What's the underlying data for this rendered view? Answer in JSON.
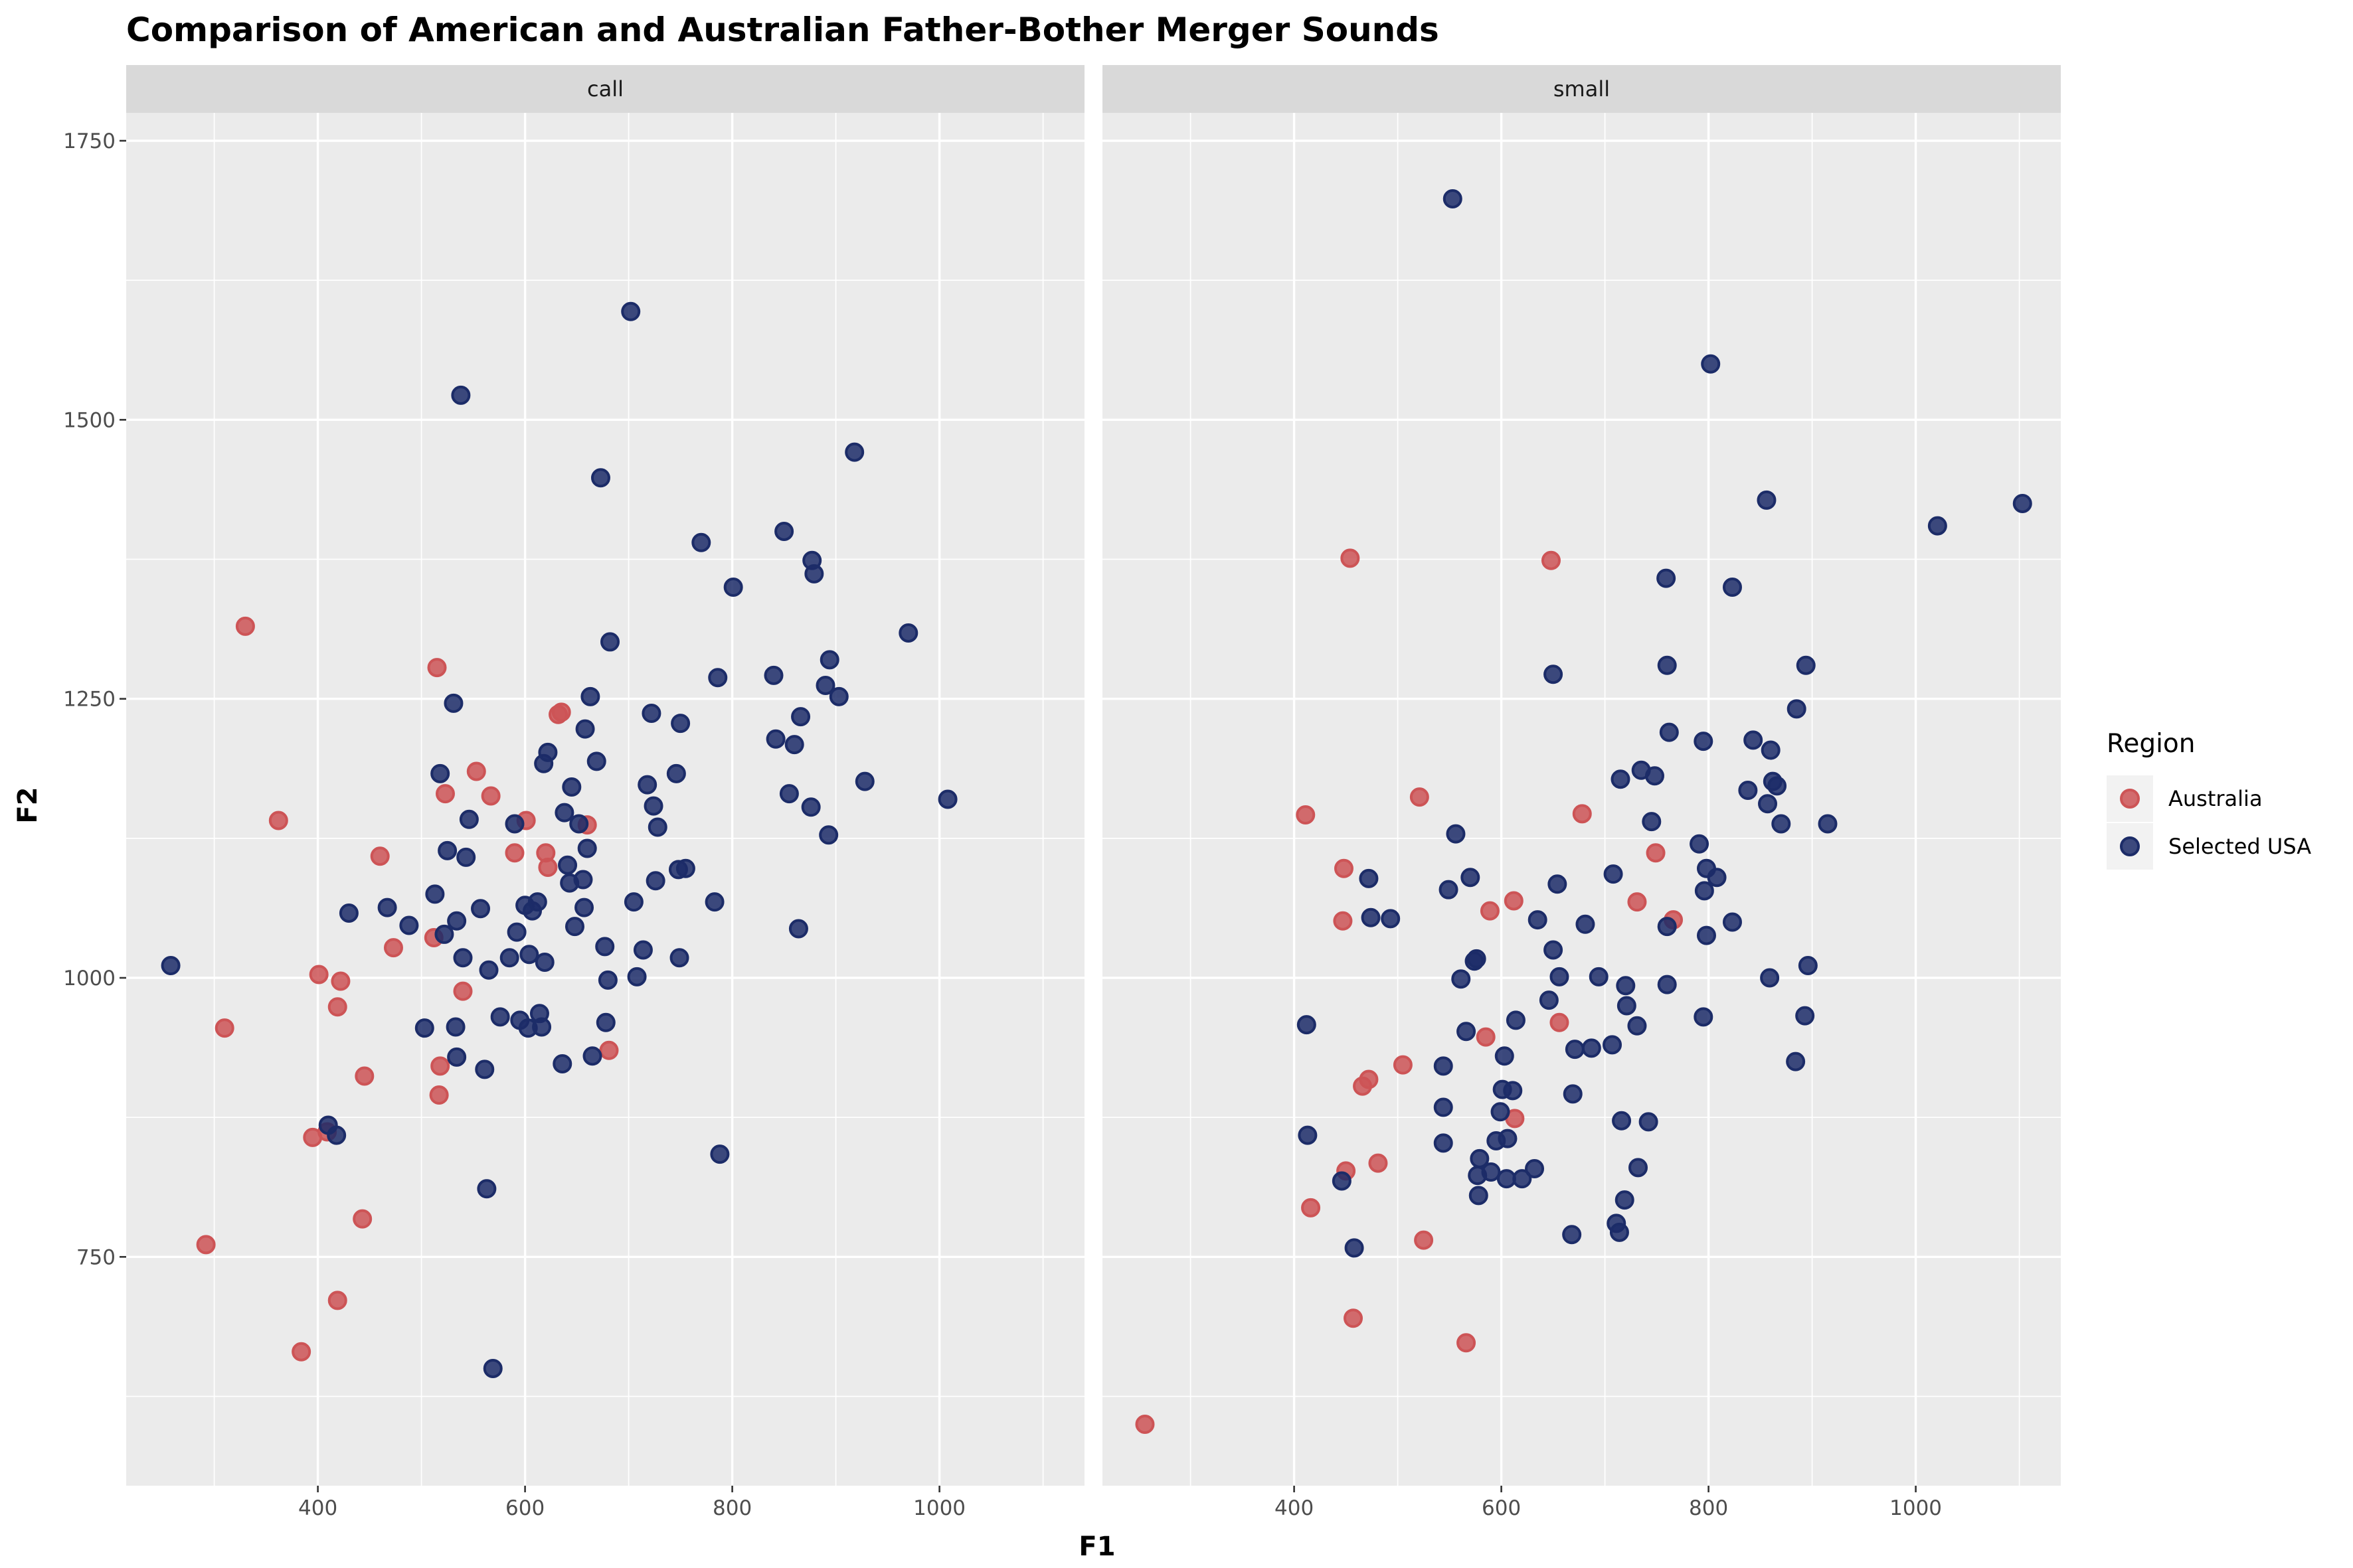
{
  "chart_data": {
    "type": "scatter",
    "title": "Comparison of American and Australian Father-Bother Merger Sounds",
    "xlabel": "F1",
    "ylabel": "F2",
    "xlim": [
      215,
      1140
    ],
    "ylim": [
      545,
      1775
    ],
    "x_major_ticks": [
      400,
      600,
      800,
      1000
    ],
    "x_minor_ticks": [
      300,
      500,
      700,
      900,
      1100
    ],
    "y_major_ticks": [
      750,
      1000,
      1250,
      1500,
      1750
    ],
    "y_minor_ticks": [
      625,
      875,
      1125,
      1375,
      1625
    ],
    "grid": true,
    "legend": {
      "title": "Region",
      "position": "right",
      "entries": [
        {
          "label": "Australia",
          "color": "#cd5456"
        },
        {
          "label": "Selected USA",
          "color": "#1c2c68"
        }
      ]
    },
    "panels": [
      {
        "label": "call",
        "series": [
          {
            "name": "Australia",
            "color": "#cd5456",
            "points": [
              [
                330,
                1315
              ],
              [
                362,
                1141
              ],
              [
                310,
                955
              ],
              [
                292,
                761
              ],
              [
                384,
                665
              ],
              [
                395,
                857
              ],
              [
                401,
                1003
              ],
              [
                409,
                862
              ],
              [
                419,
                974
              ],
              [
                422,
                997
              ],
              [
                419,
                711
              ],
              [
                443,
                784
              ],
              [
                445,
                912
              ],
              [
                460,
                1109
              ],
              [
                473,
                1027
              ],
              [
                512,
                1036
              ],
              [
                515,
                1278
              ],
              [
                517,
                895
              ],
              [
                518,
                921
              ],
              [
                523,
                1165
              ],
              [
                540,
                988
              ],
              [
                553,
                1185
              ],
              [
                567,
                1163
              ],
              [
                590,
                1112
              ],
              [
                601,
                1141
              ],
              [
                620,
                1112
              ],
              [
                622,
                1099
              ],
              [
                632,
                1236
              ],
              [
                635,
                1238
              ],
              [
                660,
                1137
              ],
              [
                681,
                935
              ]
            ]
          },
          {
            "name": "Selected USA",
            "color": "#1c2c68",
            "points": [
              [
                258,
                1011
              ],
              [
                410,
                868
              ],
              [
                418,
                859
              ],
              [
                430,
                1058
              ],
              [
                467,
                1063
              ],
              [
                488,
                1047
              ],
              [
                503,
                955
              ],
              [
                513,
                1075
              ],
              [
                518,
                1183
              ],
              [
                522,
                1039
              ],
              [
                525,
                1114
              ],
              [
                531,
                1246
              ],
              [
                533,
                956
              ],
              [
                534,
                929
              ],
              [
                534,
                1051
              ],
              [
                538,
                1522
              ],
              [
                540,
                1018
              ],
              [
                543,
                1108
              ],
              [
                546,
                1142
              ],
              [
                557,
                1062
              ],
              [
                561,
                918
              ],
              [
                563,
                811
              ],
              [
                565,
                1007
              ],
              [
                569,
                650
              ],
              [
                576,
                965
              ],
              [
                585,
                1018
              ],
              [
                590,
                1138
              ],
              [
                592,
                1041
              ],
              [
                595,
                962
              ],
              [
                600,
                1065
              ],
              [
                603,
                955
              ],
              [
                604,
                1021
              ],
              [
                607,
                1060
              ],
              [
                612,
                1068
              ],
              [
                614,
                968
              ],
              [
                616,
                956
              ],
              [
                618,
                1192
              ],
              [
                619,
                1014
              ],
              [
                622,
                1202
              ],
              [
                636,
                923
              ],
              [
                638,
                1148
              ],
              [
                641,
                1101
              ],
              [
                643,
                1085
              ],
              [
                645,
                1171
              ],
              [
                648,
                1046
              ],
              [
                652,
                1138
              ],
              [
                656,
                1088
              ],
              [
                657,
                1063
              ],
              [
                658,
                1223
              ],
              [
                660,
                1116
              ],
              [
                663,
                1252
              ],
              [
                665,
                930
              ],
              [
                669,
                1194
              ],
              [
                673,
                1448
              ],
              [
                677,
                1028
              ],
              [
                678,
                960
              ],
              [
                680,
                998
              ],
              [
                682,
                1301
              ],
              [
                702,
                1597
              ],
              [
                705,
                1068
              ],
              [
                708,
                1001
              ],
              [
                714,
                1025
              ],
              [
                718,
                1173
              ],
              [
                722,
                1237
              ],
              [
                724,
                1154
              ],
              [
                726,
                1087
              ],
              [
                728,
                1135
              ],
              [
                746,
                1183
              ],
              [
                748,
                1097
              ],
              [
                749,
                1018
              ],
              [
                750,
                1228
              ],
              [
                755,
                1098
              ],
              [
                770,
                1390
              ],
              [
                783,
                1068
              ],
              [
                786,
                1269
              ],
              [
                788,
                842
              ],
              [
                801,
                1350
              ],
              [
                840,
                1271
              ],
              [
                842,
                1214
              ],
              [
                850,
                1400
              ],
              [
                855,
                1165
              ],
              [
                860,
                1209
              ],
              [
                864,
                1044
              ],
              [
                866,
                1234
              ],
              [
                876,
                1153
              ],
              [
                877,
                1374
              ],
              [
                879,
                1362
              ],
              [
                890,
                1262
              ],
              [
                893,
                1128
              ],
              [
                894,
                1285
              ],
              [
                903,
                1252
              ],
              [
                918,
                1471
              ],
              [
                928,
                1176
              ],
              [
                970,
                1309
              ],
              [
                1008,
                1160
              ]
            ]
          }
        ]
      },
      {
        "label": "small",
        "series": [
          {
            "name": "Australia",
            "color": "#cd5456",
            "points": [
              [
                256,
                600
              ],
              [
                411,
                1146
              ],
              [
                416,
                794
              ],
              [
                447,
                1051
              ],
              [
                448,
                1098
              ],
              [
                450,
                827
              ],
              [
                454,
                1376
              ],
              [
                457,
                695
              ],
              [
                466,
                903
              ],
              [
                472,
                909
              ],
              [
                481,
                834
              ],
              [
                505,
                922
              ],
              [
                521,
                1162
              ],
              [
                525,
                765
              ],
              [
                566,
                673
              ],
              [
                585,
                947
              ],
              [
                589,
                1060
              ],
              [
                612,
                1069
              ],
              [
                613,
                874
              ],
              [
                648,
                1374
              ],
              [
                656,
                960
              ],
              [
                678,
                1147
              ],
              [
                731,
                1068
              ],
              [
                749,
                1112
              ],
              [
                766,
                1052
              ]
            ]
          },
          {
            "name": "Selected USA",
            "color": "#1c2c68",
            "points": [
              [
                412,
                958
              ],
              [
                413,
                859
              ],
              [
                446,
                818
              ],
              [
                458,
                758
              ],
              [
                472,
                1089
              ],
              [
                474,
                1054
              ],
              [
                493,
                1053
              ],
              [
                544,
                921
              ],
              [
                544,
                884
              ],
              [
                544,
                852
              ],
              [
                549,
                1079
              ],
              [
                553,
                1698
              ],
              [
                556,
                1129
              ],
              [
                561,
                999
              ],
              [
                566,
                952
              ],
              [
                570,
                1090
              ],
              [
                574,
                1015
              ],
              [
                576,
                1017
              ],
              [
                577,
                823
              ],
              [
                578,
                805
              ],
              [
                579,
                838
              ],
              [
                590,
                826
              ],
              [
                595,
                854
              ],
              [
                599,
                880
              ],
              [
                601,
                900
              ],
              [
                603,
                930
              ],
              [
                605,
                820
              ],
              [
                606,
                856
              ],
              [
                611,
                899
              ],
              [
                614,
                962
              ],
              [
                620,
                820
              ],
              [
                632,
                829
              ],
              [
                635,
                1052
              ],
              [
                646,
                980
              ],
              [
                650,
                1025
              ],
              [
                650,
                1272
              ],
              [
                654,
                1084
              ],
              [
                656,
                1001
              ],
              [
                668,
                770
              ],
              [
                669,
                896
              ],
              [
                671,
                936
              ],
              [
                681,
                1048
              ],
              [
                687,
                937
              ],
              [
                694,
                1001
              ],
              [
                707,
                940
              ],
              [
                708,
                1093
              ],
              [
                711,
                780
              ],
              [
                714,
                772
              ],
              [
                715,
                1178
              ],
              [
                716,
                872
              ],
              [
                719,
                801
              ],
              [
                720,
                993
              ],
              [
                721,
                975
              ],
              [
                731,
                957
              ],
              [
                732,
                830
              ],
              [
                735,
                1186
              ],
              [
                742,
                871
              ],
              [
                745,
                1140
              ],
              [
                748,
                1181
              ],
              [
                759,
                1358
              ],
              [
                760,
                1280
              ],
              [
                760,
                1046
              ],
              [
                760,
                994
              ],
              [
                762,
                1220
              ],
              [
                791,
                1120
              ],
              [
                795,
                965
              ],
              [
                795,
                1212
              ],
              [
                796,
                1078
              ],
              [
                798,
                1098
              ],
              [
                798,
                1038
              ],
              [
                802,
                1550
              ],
              [
                808,
                1090
              ],
              [
                823,
                1350
              ],
              [
                823,
                1050
              ],
              [
                838,
                1168
              ],
              [
                843,
                1213
              ],
              [
                856,
                1428
              ],
              [
                857,
                1156
              ],
              [
                859,
                1000
              ],
              [
                860,
                1204
              ],
              [
                862,
                1176
              ],
              [
                866,
                1172
              ],
              [
                870,
                1138
              ],
              [
                884,
                925
              ],
              [
                885,
                1241
              ],
              [
                893,
                966
              ],
              [
                894,
                1280
              ],
              [
                896,
                1011
              ],
              [
                915,
                1138
              ],
              [
                1021,
                1405
              ],
              [
                1103,
                1425
              ]
            ]
          }
        ]
      }
    ]
  }
}
